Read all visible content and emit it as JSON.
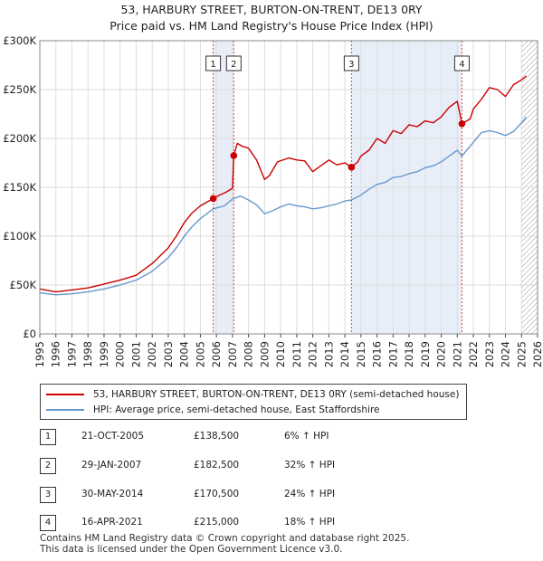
{
  "title_line1": "53, HARBURY STREET, BURTON-ON-TRENT, DE13 0RY",
  "title_line2": "Price paid vs. HM Land Registry's House Price Index (HPI)",
  "colors": {
    "property": "#cc0000",
    "hpi": "#6699cc",
    "shade": "#e8eef8",
    "grid": "#dddddd"
  },
  "chart_data": {
    "type": "line",
    "title": "53, HARBURY STREET, BURTON-ON-TRENT, DE13 0RY — Price paid vs. HM Land Registry's House Price Index (HPI)",
    "xlabel": "",
    "ylabel": "",
    "xlim": [
      1995,
      2026
    ],
    "ylim": [
      0,
      300000
    ],
    "y_ticks": [
      0,
      50000,
      100000,
      150000,
      200000,
      250000,
      300000
    ],
    "y_tick_labels": [
      "£0",
      "£50K",
      "£100K",
      "£150K",
      "£200K",
      "£250K",
      "£300K"
    ],
    "x_ticks": [
      1995,
      1996,
      1997,
      1998,
      1999,
      2000,
      2001,
      2002,
      2003,
      2004,
      2005,
      2006,
      2007,
      2008,
      2009,
      2010,
      2011,
      2012,
      2013,
      2014,
      2015,
      2016,
      2017,
      2018,
      2019,
      2020,
      2021,
      2022,
      2023,
      2024,
      2025,
      2026
    ],
    "shaded_ranges": [
      [
        2005.8,
        2007.08
      ],
      [
        2014.41,
        2021.29
      ]
    ],
    "hatched_from": 2025.0,
    "series": [
      {
        "name": "53, HARBURY STREET, BURTON-ON-TRENT, DE13 0RY (semi-detached house)",
        "color": "#cc0000",
        "x": [
          1995,
          1996,
          1997,
          1998,
          1999,
          2000,
          2001,
          2002,
          2003,
          2003.5,
          2004,
          2004.5,
          2005,
          2005.8,
          2006.2,
          2006.6,
          2007.0,
          2007.08,
          2007.3,
          2007.6,
          2008.0,
          2008.5,
          2009.0,
          2009.3,
          2009.8,
          2010.5,
          2011,
          2011.5,
          2012,
          2012.5,
          2013,
          2013.5,
          2014,
          2014.41,
          2014.8,
          2015,
          2015.5,
          2016,
          2016.5,
          2017,
          2017.5,
          2018,
          2018.5,
          2019,
          2019.5,
          2020,
          2020.5,
          2021,
          2021.29,
          2021.8,
          2022,
          2022.5,
          2023,
          2023.5,
          2024,
          2024.5,
          2025,
          2025.3
        ],
        "values": [
          46000,
          43000,
          45000,
          47000,
          51000,
          55000,
          60000,
          72000,
          88000,
          100000,
          114000,
          124000,
          131000,
          138500,
          142000,
          145000,
          149000,
          182500,
          195000,
          192000,
          190000,
          178000,
          158000,
          162000,
          176000,
          180000,
          178000,
          177000,
          166000,
          172000,
          178000,
          173000,
          175000,
          170500,
          176000,
          182000,
          188000,
          200000,
          195000,
          208000,
          205000,
          214000,
          212000,
          218000,
          216000,
          222000,
          232000,
          238000,
          215000,
          220000,
          230000,
          240000,
          252000,
          250000,
          243000,
          255000,
          260000,
          264000
        ]
      },
      {
        "name": "HPI: Average price, semi-detached house, East Staffordshire",
        "color": "#6699cc",
        "x": [
          1995,
          1996,
          1997,
          1998,
          1999,
          2000,
          2001,
          2002,
          2003,
          2003.5,
          2004,
          2004.5,
          2005,
          2005.8,
          2006.5,
          2007,
          2007.5,
          2008,
          2008.5,
          2009,
          2009.5,
          2010,
          2010.5,
          2011,
          2011.5,
          2012,
          2012.5,
          2013,
          2013.5,
          2014,
          2014.41,
          2015,
          2015.5,
          2016,
          2016.5,
          2017,
          2017.5,
          2018,
          2018.5,
          2019,
          2019.5,
          2020,
          2020.5,
          2021,
          2021.29,
          2022,
          2022.5,
          2023,
          2023.5,
          2024,
          2024.5,
          2025,
          2025.3
        ],
        "values": [
          42000,
          40000,
          41000,
          43000,
          46000,
          50000,
          55000,
          64000,
          78000,
          88000,
          100000,
          110000,
          118000,
          128000,
          131000,
          138000,
          141000,
          137000,
          132000,
          123000,
          126000,
          130000,
          133000,
          131000,
          130000,
          128000,
          129000,
          131000,
          133000,
          136000,
          137000,
          142000,
          148000,
          153000,
          155000,
          160000,
          161000,
          164000,
          166000,
          170000,
          172000,
          176000,
          182000,
          188000,
          182000,
          196000,
          206000,
          208000,
          206000,
          203000,
          207000,
          216000,
          222000
        ]
      }
    ],
    "annotations": [
      {
        "label": "1",
        "x": 2005.8,
        "y": 138500
      },
      {
        "label": "2",
        "x": 2007.08,
        "y": 182500
      },
      {
        "label": "3",
        "x": 2014.41,
        "y": 170500
      },
      {
        "label": "4",
        "x": 2021.29,
        "y": 215000
      }
    ]
  },
  "legend": {
    "property_label": "53, HARBURY STREET, BURTON-ON-TRENT, DE13 0RY (semi-detached house)",
    "hpi_label": "HPI: Average price, semi-detached house, East Staffordshire"
  },
  "transactions": [
    {
      "num": "1",
      "date": "21-OCT-2005",
      "price": "£138,500",
      "hpi": "6% ↑ HPI"
    },
    {
      "num": "2",
      "date": "29-JAN-2007",
      "price": "£182,500",
      "hpi": "32% ↑ HPI"
    },
    {
      "num": "3",
      "date": "30-MAY-2014",
      "price": "£170,500",
      "hpi": "24% ↑ HPI"
    },
    {
      "num": "4",
      "date": "16-APR-2021",
      "price": "£215,000",
      "hpi": "18% ↑ HPI"
    }
  ],
  "footer_line1": "Contains HM Land Registry data © Crown copyright and database right 2025.",
  "footer_line2": "This data is licensed under the Open Government Licence v3.0."
}
